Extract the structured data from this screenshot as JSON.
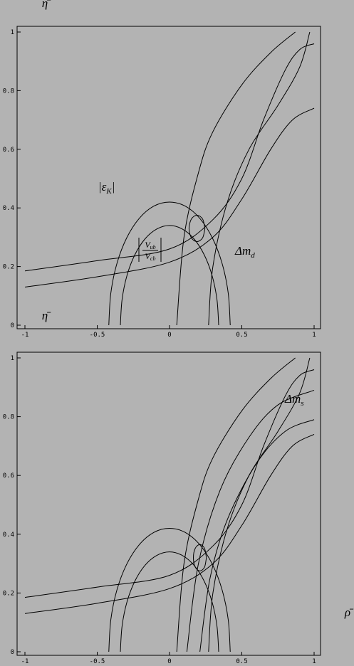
{
  "chart_data": [
    {
      "type": "line",
      "ylabel": "η̄",
      "xlim": [
        -1,
        1
      ],
      "ylim": [
        0,
        1
      ],
      "xticks": [
        -1,
        -0.5,
        0,
        0.5,
        1
      ],
      "yticks": [
        0,
        0.2,
        0.4,
        0.6,
        0.8,
        1
      ],
      "annotations": [
        {
          "base": "|ε",
          "sub": "K",
          "tail": "|"
        },
        {
          "numerator": "V",
          "numerator_sub": "ub",
          "denominator": "V",
          "denominator_sub": "cb"
        },
        {
          "base": "Δm",
          "sub": "d"
        }
      ],
      "series": [
        {
          "color": "#000000",
          "x": [
            -1,
            -0.5,
            0,
            0.3,
            0.5,
            0.65,
            0.8,
            0.9,
            1
          ],
          "values": [
            0.185,
            0.22,
            0.26,
            0.36,
            0.5,
            0.7,
            0.87,
            0.94,
            0.96
          ]
        },
        {
          "color": "#000000",
          "x": [
            -1,
            -0.5,
            0,
            0.3,
            0.5,
            0.7,
            0.85,
            1
          ],
          "values": [
            0.13,
            0.165,
            0.215,
            0.3,
            0.43,
            0.6,
            0.7,
            0.74
          ]
        },
        {
          "color": "#000000",
          "x": [
            -0.42,
            -0.406,
            -0.364,
            -0.297,
            -0.21,
            -0.109,
            0,
            0.109,
            0.21,
            0.297,
            0.364,
            0.406,
            0.42
          ],
          "values": [
            0,
            0.109,
            0.21,
            0.297,
            0.364,
            0.406,
            0.42,
            0.406,
            0.364,
            0.297,
            0.21,
            0.109,
            0
          ]
        },
        {
          "color": "#000000",
          "x": [
            -0.34,
            -0.328,
            -0.294,
            -0.24,
            -0.17,
            -0.088,
            0,
            0.088,
            0.17,
            0.24,
            0.294,
            0.328,
            0.34
          ],
          "values": [
            0,
            0.088,
            0.17,
            0.24,
            0.294,
            0.328,
            0.34,
            0.328,
            0.294,
            0.24,
            0.17,
            0.088,
            0
          ]
        },
        {
          "color": "#000000",
          "x": [
            0.05,
            0.1,
            0.2,
            0.3,
            0.5,
            0.7,
            0.87
          ],
          "values": [
            0,
            0.3,
            0.52,
            0.66,
            0.82,
            0.93,
            1
          ]
        },
        {
          "color": "#000000",
          "x": [
            0.27,
            0.3,
            0.4,
            0.55,
            0.75,
            0.9,
            0.97
          ],
          "values": [
            0,
            0.2,
            0.42,
            0.6,
            0.75,
            0.88,
            1
          ]
        },
        {
          "color": "#000000",
          "x": [
            0.245,
            0.229,
            0.19,
            0.151,
            0.135,
            0.151,
            0.19,
            0.229,
            0.245
          ],
          "values": [
            0.33,
            0.362,
            0.375,
            0.362,
            0.33,
            0.298,
            0.285,
            0.298,
            0.33
          ]
        }
      ]
    },
    {
      "type": "line",
      "ylabel": "η̄",
      "xlabel": "ρ̄",
      "xlim": [
        -1,
        1
      ],
      "ylim": [
        0,
        1
      ],
      "xticks": [
        -1,
        -0.5,
        0,
        0.5,
        1
      ],
      "yticks": [
        0,
        0.2,
        0.4,
        0.6,
        0.8,
        1
      ],
      "annotations": [
        {
          "base": "Δm",
          "sub": "s"
        }
      ],
      "series": [
        {
          "color": "#000000",
          "x": [
            -1,
            -0.5,
            0,
            0.3,
            0.5,
            0.65,
            0.8,
            0.9,
            1
          ],
          "values": [
            0.185,
            0.22,
            0.26,
            0.36,
            0.5,
            0.7,
            0.87,
            0.94,
            0.96
          ]
        },
        {
          "color": "#000000",
          "x": [
            -1,
            -0.5,
            0,
            0.3,
            0.5,
            0.7,
            0.85,
            1
          ],
          "values": [
            0.13,
            0.165,
            0.215,
            0.3,
            0.43,
            0.6,
            0.7,
            0.74
          ]
        },
        {
          "color": "#000000",
          "x": [
            -0.42,
            -0.406,
            -0.364,
            -0.297,
            -0.21,
            -0.109,
            0,
            0.109,
            0.21,
            0.297,
            0.364,
            0.406,
            0.42
          ],
          "values": [
            0,
            0.109,
            0.21,
            0.297,
            0.364,
            0.406,
            0.42,
            0.406,
            0.364,
            0.297,
            0.21,
            0.109,
            0
          ]
        },
        {
          "color": "#000000",
          "x": [
            -0.34,
            -0.328,
            -0.294,
            -0.24,
            -0.17,
            -0.088,
            0,
            0.088,
            0.17,
            0.24,
            0.294,
            0.328,
            0.34
          ],
          "values": [
            0,
            0.088,
            0.17,
            0.24,
            0.294,
            0.328,
            0.34,
            0.328,
            0.294,
            0.24,
            0.17,
            0.088,
            0
          ]
        },
        {
          "color": "#000000",
          "x": [
            0.05,
            0.1,
            0.2,
            0.3,
            0.5,
            0.7,
            0.87
          ],
          "values": [
            0,
            0.3,
            0.52,
            0.66,
            0.82,
            0.93,
            1
          ]
        },
        {
          "color": "#000000",
          "x": [
            0.27,
            0.3,
            0.4,
            0.55,
            0.75,
            0.9,
            0.97
          ],
          "values": [
            0,
            0.2,
            0.42,
            0.6,
            0.75,
            0.88,
            1
          ]
        },
        {
          "color": "#000000",
          "x": [
            0.12,
            0.2,
            0.35,
            0.55,
            0.75,
            1
          ],
          "values": [
            0,
            0.3,
            0.55,
            0.73,
            0.84,
            0.89
          ]
        },
        {
          "color": "#000000",
          "x": [
            0.21,
            0.28,
            0.4,
            0.6,
            0.8,
            1
          ],
          "values": [
            0,
            0.25,
            0.45,
            0.64,
            0.75,
            0.79
          ]
        },
        {
          "color": "#000000",
          "x": [
            0.255,
            0.242,
            0.21,
            0.178,
            0.165,
            0.178,
            0.21,
            0.242,
            0.255
          ],
          "values": [
            0.32,
            0.352,
            0.365,
            0.352,
            0.32,
            0.288,
            0.275,
            0.288,
            0.32
          ]
        }
      ]
    }
  ]
}
